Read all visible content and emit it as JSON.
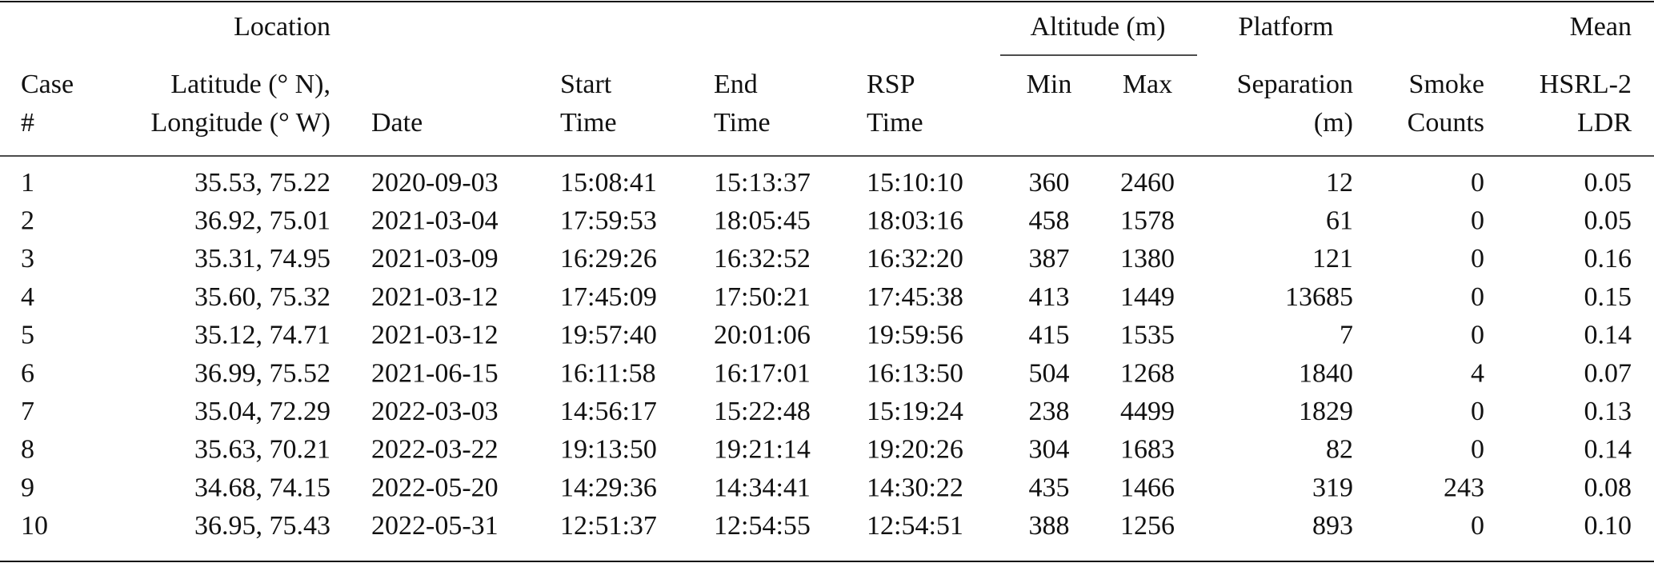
{
  "header": {
    "groups": [
      "Location",
      "Altitude (m)",
      "Platform",
      "Mean"
    ],
    "columns": [
      [
        "Case",
        "#"
      ],
      [
        "Latitude (° N),",
        "Longitude (° W)"
      ],
      [
        "Date"
      ],
      [
        "Start",
        "Time"
      ],
      [
        "End",
        "Time"
      ],
      [
        "RSP",
        "Time"
      ],
      [
        "Min"
      ],
      [
        "Max"
      ],
      [
        "Separation",
        "(m)"
      ],
      [
        "Smoke",
        "Counts"
      ],
      [
        "HSRL-2",
        "LDR"
      ]
    ]
  },
  "table": {
    "rows": [
      [
        "1",
        "35.53, 75.22",
        "2020-09-03",
        "15:08:41",
        "15:13:37",
        "15:10:10",
        "360",
        "2460",
        "12",
        "0",
        "0.05"
      ],
      [
        "2",
        "36.92, 75.01",
        "2021-03-04",
        "17:59:53",
        "18:05:45",
        "18:03:16",
        "458",
        "1578",
        "61",
        "0",
        "0.05"
      ],
      [
        "3",
        "35.31, 74.95",
        "2021-03-09",
        "16:29:26",
        "16:32:52",
        "16:32:20",
        "387",
        "1380",
        "121",
        "0",
        "0.16"
      ],
      [
        "4",
        "35.60, 75.32",
        "2021-03-12",
        "17:45:09",
        "17:50:21",
        "17:45:38",
        "413",
        "1449",
        "13685",
        "0",
        "0.15"
      ],
      [
        "5",
        "35.12, 74.71",
        "2021-03-12",
        "19:57:40",
        "20:01:06",
        "19:59:56",
        "415",
        "1535",
        "7",
        "0",
        "0.14"
      ],
      [
        "6",
        "36.99, 75.52",
        "2021-06-15",
        "16:11:58",
        "16:17:01",
        "16:13:50",
        "504",
        "1268",
        "1840",
        "4",
        "0.07"
      ],
      [
        "7",
        "35.04, 72.29",
        "2022-03-03",
        "14:56:17",
        "15:22:48",
        "15:19:24",
        "238",
        "4499",
        "1829",
        "0",
        "0.13"
      ],
      [
        "8",
        "35.63, 70.21",
        "2022-03-22",
        "19:13:50",
        "19:21:14",
        "19:20:26",
        "304",
        "1683",
        "82",
        "0",
        "0.14"
      ],
      [
        "9",
        "34.68, 74.15",
        "2022-05-20",
        "14:29:36",
        "14:34:41",
        "14:30:22",
        "435",
        "1466",
        "319",
        "243",
        "0.08"
      ],
      [
        "10",
        "36.95, 75.43",
        "2022-05-31",
        "12:51:37",
        "12:54:55",
        "12:54:51",
        "388",
        "1256",
        "893",
        "0",
        "0.10"
      ]
    ]
  }
}
